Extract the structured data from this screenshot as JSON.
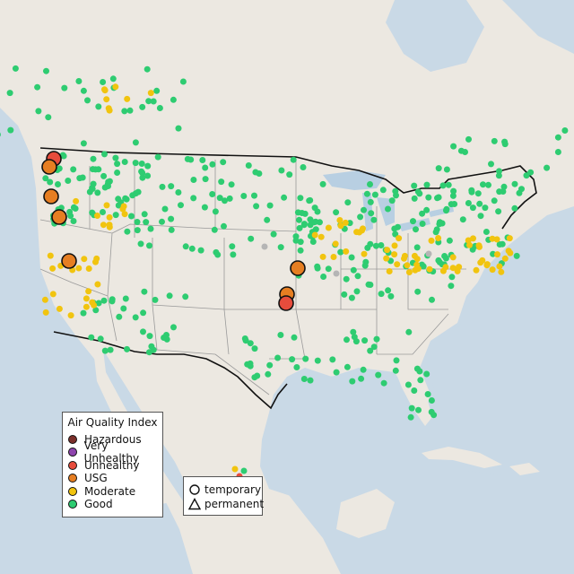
{
  "colors": {
    "ocean": "#c9d9e6",
    "land": "#ece8e1",
    "lakes": "#b8cfe2",
    "border": "#111111",
    "state_lines": "#9a9a9a",
    "good": "#2ecc71",
    "moderate": "#f1c40f",
    "usg": "#e67e22",
    "unhealthy": "#e74c3c",
    "very_unhealthy": "#8e44ad",
    "hazardous": "#7b2f2a",
    "no_data": "#b5b5b5"
  },
  "aqi_legend": {
    "title": "Air Quality Index",
    "items": [
      {
        "label": "Hazardous",
        "color": "#7b2f2a"
      },
      {
        "label": "Very Unhealthy",
        "color": "#8e44ad"
      },
      {
        "label": "Unhealthy",
        "color": "#e74c3c"
      },
      {
        "label": "USG",
        "color": "#e67e22"
      },
      {
        "label": "Moderate",
        "color": "#f1c40f"
      },
      {
        "label": "Good",
        "color": "#2ecc71"
      }
    ]
  },
  "type_legend": {
    "items": [
      {
        "label": "temporary",
        "shape": "circle"
      },
      {
        "label": "permanent",
        "shape": "triangle"
      }
    ]
  }
}
